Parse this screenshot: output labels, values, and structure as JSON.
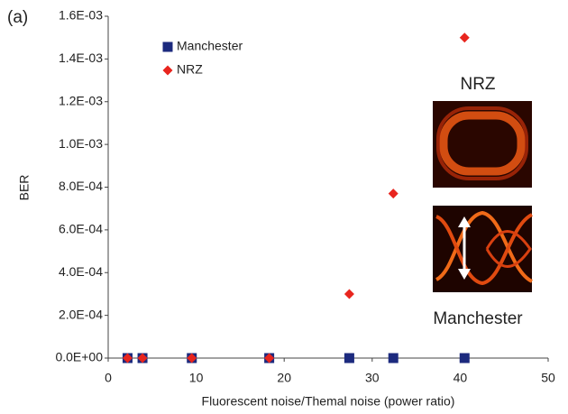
{
  "chart_data": {
    "type": "scatter",
    "panel_label": "(a)",
    "x_label": "Fluorescent noise/Themal noise (power ratio)",
    "y_label": "BER",
    "annotations": [
      "NRZ",
      "Manchester"
    ],
    "xlim": [
      0,
      50
    ],
    "xticks": [
      0,
      10,
      20,
      30,
      40,
      50
    ],
    "ylim": [
      0,
      0.0016
    ],
    "yticks": [
      {
        "value": 0,
        "label": "0.0E+00"
      },
      {
        "value": 0.0002,
        "label": "2.0E-04"
      },
      {
        "value": 0.0004,
        "label": "4.0E-04"
      },
      {
        "value": 0.0006,
        "label": "6.0E-04"
      },
      {
        "value": 0.0008,
        "label": "8.0E-04"
      },
      {
        "value": 0.001,
        "label": "1.0E-03"
      },
      {
        "value": 0.0012,
        "label": "1.2E-03"
      },
      {
        "value": 0.0014,
        "label": "1.4E-03"
      },
      {
        "value": 0.0016,
        "label": "1.6E-03"
      }
    ],
    "grid": false,
    "legend": "upper left",
    "series": [
      {
        "name": "Manchester",
        "color": "#1c2a7e",
        "marker": "square",
        "x": [
          2.2,
          3.9,
          9.5,
          18.3,
          27.4,
          32.4,
          40.5
        ],
        "values": [
          0,
          0,
          0,
          0,
          0,
          0,
          0
        ]
      },
      {
        "name": "NRZ",
        "color": "#e8251e",
        "marker": "diamond",
        "x": [
          2.2,
          3.9,
          9.5,
          18.3,
          27.4,
          32.4,
          40.5
        ],
        "values": [
          0,
          0,
          0,
          0,
          0.0003,
          0.00077,
          0.0015
        ]
      }
    ]
  }
}
